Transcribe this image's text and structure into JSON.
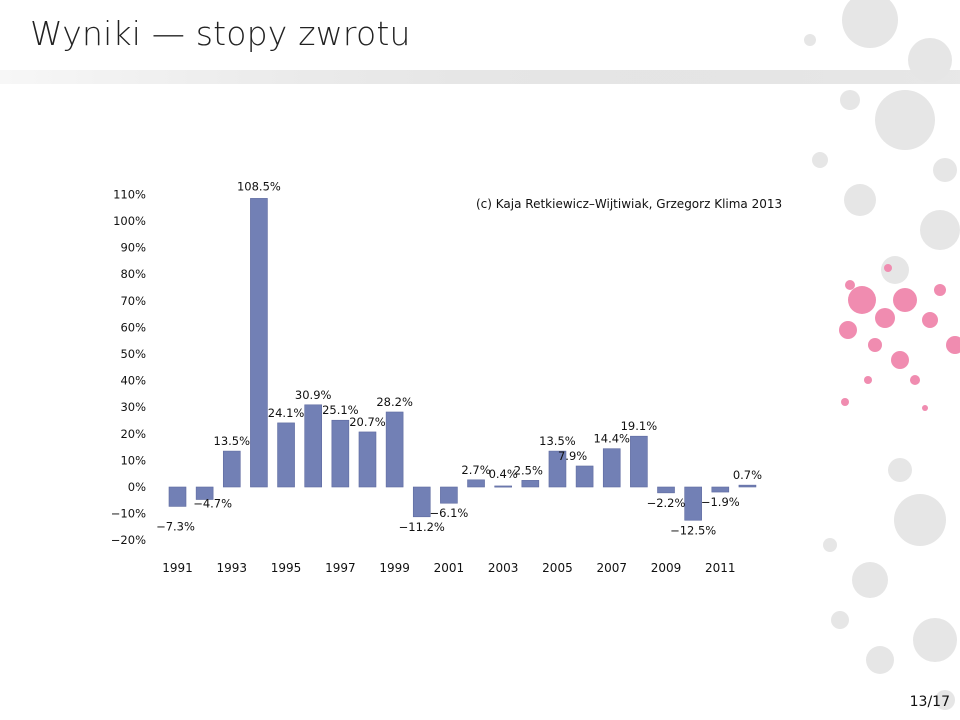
{
  "slide": {
    "title": "Wyniki — stopy zwrotu",
    "copyright": "(c) Kaja Retkiewicz–Wijtiwiak, Grzegorz Klima 2013",
    "page_number": "13/17"
  },
  "colors": {
    "bar": "#7280b5",
    "bar_stroke": "#5e6aa0",
    "decor_pink": "#f08cb0",
    "decor_grey": "#e6e6e6"
  },
  "chart_data": {
    "type": "bar",
    "categories": [
      "1991",
      "1992",
      "1993",
      "1994",
      "1995",
      "1996",
      "1997",
      "1998",
      "1999",
      "2000",
      "2001",
      "2002",
      "2003",
      "2004",
      "2005",
      "2006",
      "2007",
      "2008",
      "2009",
      "2010",
      "2011",
      "2012"
    ],
    "values": [
      -7.3,
      -4.7,
      13.5,
      108.5,
      24.1,
      30.9,
      25.1,
      20.7,
      28.2,
      -11.2,
      -6.1,
      2.7,
      0.4,
      2.5,
      13.5,
      7.9,
      14.4,
      19.1,
      -2.2,
      -12.5,
      -1.9,
      0.7
    ],
    "value_labels": [
      "−7.3%",
      "−4.7%",
      "13.5%",
      "108.5%",
      "24.1%",
      "30.9%",
      "25.1%",
      "20.7%",
      "28.2%",
      "−11.2%",
      "−6.1%",
      "2.7%",
      "0.4%",
      "2.5%",
      "13.5%",
      "7.9%",
      "14.4%",
      "19.1%",
      "−2.2%",
      "−12.5%",
      "−1.9%",
      "0.7%"
    ],
    "x_tick_labels": [
      "1991",
      "1993",
      "1995",
      "1997",
      "1999",
      "2001",
      "2003",
      "2005",
      "2007",
      "2009",
      "2011"
    ],
    "y_ticks": [
      110,
      100,
      90,
      80,
      70,
      60,
      50,
      40,
      30,
      20,
      10,
      0,
      -10,
      -20
    ],
    "y_tick_labels": [
      "110%",
      "100%",
      "90%",
      "80%",
      "70%",
      "60%",
      "50%",
      "40%",
      "30%",
      "20%",
      "10%",
      "0%",
      "−10%",
      "−20%"
    ],
    "ylim": [
      -20,
      110
    ],
    "title": "",
    "xlabel": "",
    "ylabel": "",
    "grid": false,
    "legend": "none"
  }
}
